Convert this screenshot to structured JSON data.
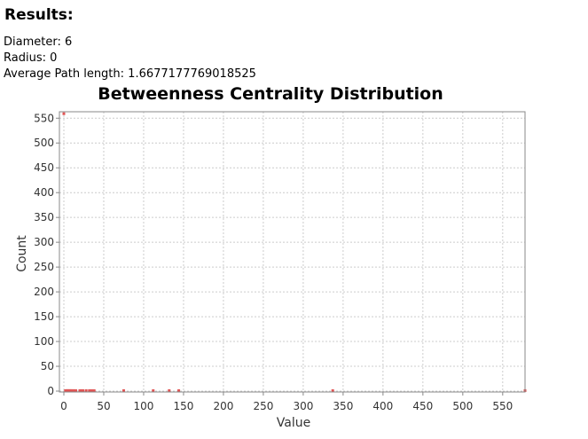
{
  "results": {
    "heading": "Results:",
    "stats": [
      {
        "label": "Diameter:",
        "value": "6"
      },
      {
        "label": "Radius:",
        "value": "0"
      },
      {
        "label": "Average Path length:",
        "value": "1.6677177769018525"
      }
    ]
  },
  "chart_data": {
    "type": "scatter",
    "title": "Betweenness Centrality Distribution",
    "xlabel": "Value",
    "ylabel": "Count",
    "xlim": [
      0,
      578
    ],
    "ylim": [
      0,
      563
    ],
    "xticks": [
      0,
      50,
      100,
      150,
      200,
      250,
      300,
      350,
      400,
      450,
      500,
      550
    ],
    "yticks": [
      0,
      50,
      100,
      150,
      200,
      250,
      300,
      350,
      400,
      450,
      500,
      550
    ],
    "grid": true,
    "color": "#e05555",
    "points": [
      {
        "x": 0,
        "y": 559
      },
      {
        "x": 2,
        "y": 1
      },
      {
        "x": 3,
        "y": 1
      },
      {
        "x": 4,
        "y": 1
      },
      {
        "x": 5,
        "y": 1
      },
      {
        "x": 6,
        "y": 1
      },
      {
        "x": 7,
        "y": 1
      },
      {
        "x": 8,
        "y": 1
      },
      {
        "x": 9,
        "y": 1
      },
      {
        "x": 10,
        "y": 1
      },
      {
        "x": 12,
        "y": 1
      },
      {
        "x": 13,
        "y": 1
      },
      {
        "x": 15,
        "y": 1
      },
      {
        "x": 20,
        "y": 1
      },
      {
        "x": 22,
        "y": 1
      },
      {
        "x": 24,
        "y": 1
      },
      {
        "x": 28,
        "y": 1
      },
      {
        "x": 32,
        "y": 1
      },
      {
        "x": 35,
        "y": 1
      },
      {
        "x": 38,
        "y": 1
      },
      {
        "x": 75,
        "y": 1
      },
      {
        "x": 112,
        "y": 1
      },
      {
        "x": 132,
        "y": 1
      },
      {
        "x": 144,
        "y": 1
      },
      {
        "x": 337,
        "y": 1
      },
      {
        "x": 578,
        "y": 1
      }
    ]
  }
}
